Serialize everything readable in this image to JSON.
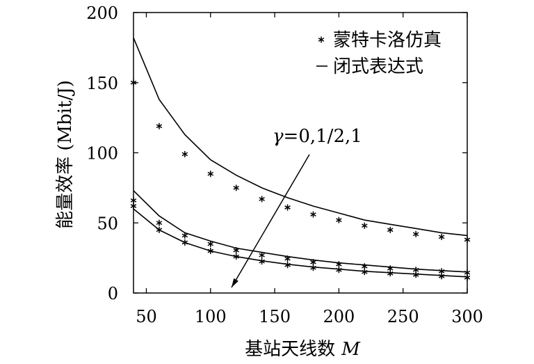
{
  "chart_data": {
    "type": "line",
    "xlabel": "基站天线数",
    "xlabel_symbol": "M",
    "ylabel": "能量效率 (Mbit/J)",
    "xlim": [
      40,
      300
    ],
    "ylim": [
      0,
      200
    ],
    "xticks": [
      50,
      100,
      150,
      200,
      250,
      300
    ],
    "yticks": [
      0,
      50,
      100,
      150,
      200
    ],
    "grid": false,
    "legend_position": "top-right",
    "legend": [
      {
        "label": "蒙特卡洛仿真",
        "marker": "star"
      },
      {
        "label": "闭式表达式",
        "marker": "line"
      }
    ],
    "annotation": {
      "symbol": "γ",
      "text": "=0,1/2,1"
    },
    "x": [
      40,
      60,
      80,
      100,
      120,
      140,
      160,
      180,
      200,
      220,
      240,
      260,
      280,
      300
    ],
    "series": [
      {
        "marker": "line",
        "values": [
          182,
          138,
          113,
          95,
          84,
          75,
          68,
          62,
          57,
          52,
          49,
          46,
          43,
          41
        ]
      },
      {
        "marker": "line",
        "values": [
          73,
          55,
          43,
          37,
          32,
          29,
          26,
          23.5,
          21.5,
          20,
          18.5,
          17,
          16,
          15
        ]
      },
      {
        "marker": "line",
        "values": [
          60,
          45,
          36,
          30,
          26,
          23,
          20.5,
          18.5,
          17,
          15.5,
          14.5,
          13.5,
          12.5,
          11.5
        ]
      },
      {
        "marker": "star",
        "values": [
          150,
          119,
          99,
          85,
          75,
          67,
          61,
          56,
          52,
          48,
          45,
          42,
          40,
          38
        ]
      },
      {
        "marker": "star",
        "values": [
          66,
          50,
          41,
          35,
          30.5,
          27,
          24.5,
          22,
          20.5,
          19,
          17.5,
          16.5,
          15.5,
          14.5
        ]
      },
      {
        "marker": "star",
        "values": [
          62,
          45,
          36,
          30,
          26,
          22.5,
          20,
          18,
          16.5,
          15,
          14,
          13,
          12,
          11
        ]
      }
    ],
    "colors": {
      "ink": "#000000",
      "background": "#ffffff"
    }
  }
}
